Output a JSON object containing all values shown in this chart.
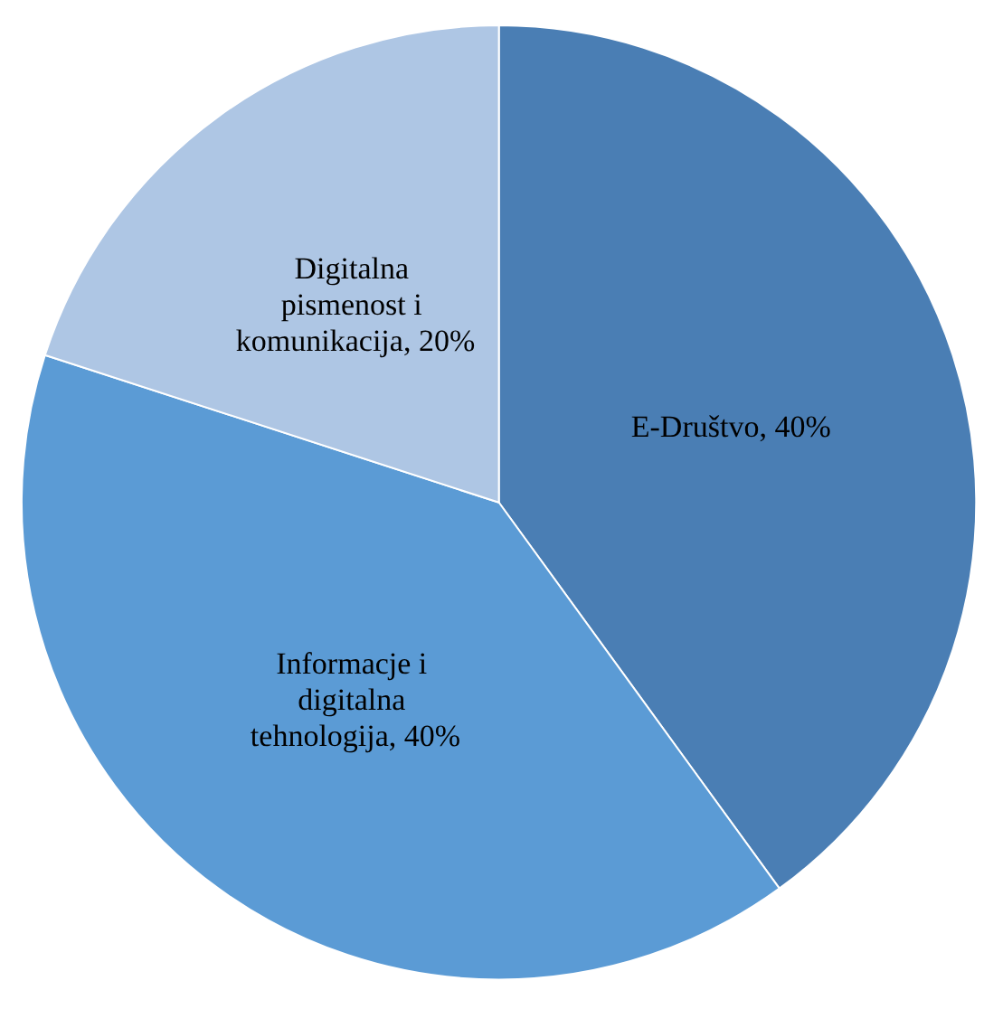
{
  "chart_data": {
    "type": "pie",
    "categories": [
      "E-Društvo",
      "Informacje i digitalna tehnologija",
      "Digitalna pismenost i komunikacija"
    ],
    "values": [
      40,
      40,
      20
    ],
    "value_labels": [
      "40%",
      "40%",
      "20%"
    ],
    "colors": [
      "#4a7eb4",
      "#5b9bd5",
      "#aec6e4"
    ],
    "legend": false
  }
}
